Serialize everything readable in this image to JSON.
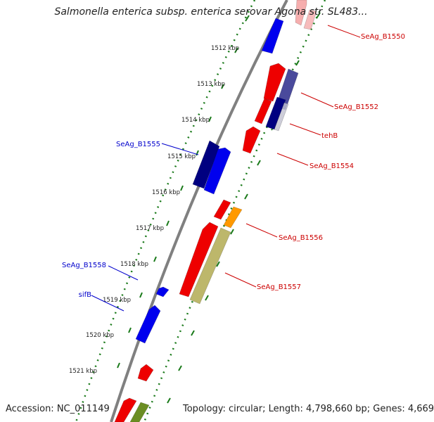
{
  "title": "Salmonella enterica subsp. enterica serovar Agona str. SL483...",
  "footer": {
    "accession": "Accession: NC_011149",
    "summary": "Topology: circular; Length: 4,798,660 bp; Genes: 4,669"
  },
  "colors": {
    "backbone": "#808080",
    "tick": "#1a7a1a",
    "forward_label": "#cc0000",
    "reverse_label": "#0000cc",
    "red_gene": "#ee0000",
    "blue_gene": "#0000ee",
    "navy_gene": "#000080",
    "slate_gene": "#4a4a9c",
    "orange_gene": "#ff9900",
    "khaki_gene": "#bdb76b",
    "olive_gene": "#6b8e23",
    "pink_gene": "#f4a0a0"
  },
  "ticks": [
    "1512 kbp",
    "1513 kbp",
    "1514 kbp",
    "1515 kbp",
    "1516 kbp",
    "1517 kbp",
    "1518 kbp",
    "1519 kbp",
    "1520 kbp",
    "1521 kbp"
  ],
  "gene_labels": [
    {
      "name": "SeAg_B1550",
      "side": "right"
    },
    {
      "name": "SeAg_B1552",
      "side": "right"
    },
    {
      "name": "tehB",
      "side": "right"
    },
    {
      "name": "SeAg_B1554",
      "side": "right"
    },
    {
      "name": "SeAg_B1555",
      "side": "left"
    },
    {
      "name": "SeAg_B1556",
      "side": "right"
    },
    {
      "name": "SeAg_B1557",
      "side": "right"
    },
    {
      "name": "SeAg_B1558",
      "side": "left"
    },
    {
      "name": "sifB",
      "side": "left"
    }
  ]
}
